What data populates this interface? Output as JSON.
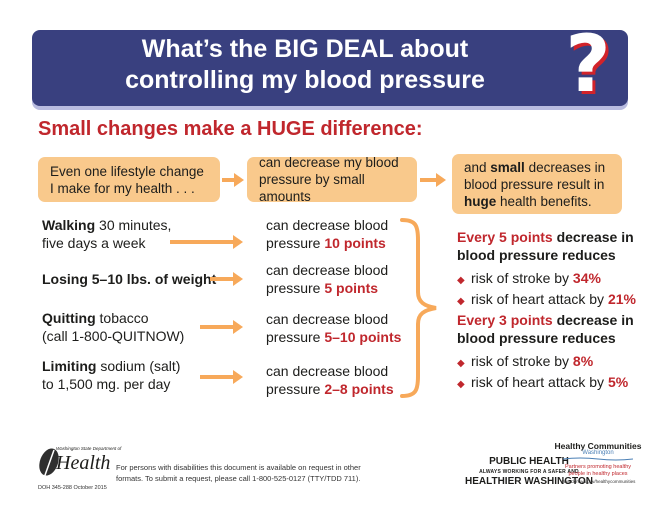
{
  "header": {
    "title_part1": "What’s the ",
    "title_bold": "BIG DEAL",
    "title_part2": " about",
    "title_line2": "controlling my blood pressure",
    "question_mark": "?"
  },
  "subtitle": "Small changes make a HUGE difference:",
  "top_boxes": {
    "box1": "Even one lifestyle change I make for my health . . .",
    "box2": "can decrease my blood pressure by small amounts",
    "box3_pre": "and ",
    "box3_small": "small",
    "box3_mid": " decreases in blood pressure result in ",
    "box3_huge": "huge",
    "box3_post": " health benefits."
  },
  "rows": [
    {
      "bold": "Walking",
      "text": " 30 minutes,",
      "line2": "five days a week",
      "effect": "can decrease blood",
      "effect2": "pressure ",
      "points": "10 points"
    },
    {
      "bold": "Losing 5–10 lbs. of weight",
      "text": "",
      "line2": "",
      "effect": "can decrease blood",
      "effect2": "pressure ",
      "points": "5 points"
    },
    {
      "bold": "Quitting",
      "text": " tobacco",
      "line2": "(call 1-800-QUITNOW)",
      "effect": "can decrease blood",
      "effect2": "pressure ",
      "points": "5–10 points"
    },
    {
      "bold": "Limiting",
      "text": " sodium (salt)",
      "line2": "to 1,500 mg. per day",
      "effect": "can decrease blood",
      "effect2": "pressure ",
      "points": "2–8 points"
    }
  ],
  "benefits": [
    {
      "head_red": "Every 5 points",
      "head_rest": " decrease in",
      "head_line2": "blood pressure reduces",
      "items": [
        {
          "text": "risk of stroke by ",
          "value": "34%"
        },
        {
          "text": "risk of heart attack by ",
          "value": "21%"
        }
      ]
    },
    {
      "head_red": "Every 3 points",
      "head_rest": " decrease in",
      "head_line2": "blood pressure reduces",
      "items": [
        {
          "text": "risk of stroke by ",
          "value": "8%"
        },
        {
          "text": "risk of heart attack by ",
          "value": "5%"
        }
      ]
    }
  ],
  "footer": {
    "wa_dept": "Washington State Department of",
    "health": "Health",
    "doh": "DOH 345-288 October 2015",
    "notice_line1": "For persons with disabilities this document is available on request in other",
    "notice_line2": "formats. To submit a request, please call 1-800-525-0127 (TTY/TDD 711).",
    "ph_line1": "PUBLIC HEALTH",
    "ph_small": "ALWAYS WORKING FOR A SAFER AND",
    "ph_line2": "HEALTHIER WASHINGTON",
    "hc_title": "Healthy Communities",
    "hc_state": "Washington",
    "hc_tag1": "Partners promoting healthy",
    "hc_tag2": "people in healthy places",
    "hc_url": "www.doh.wa.gov/healthycommunities"
  },
  "colors": {
    "banner": "#39407f",
    "accent_red": "#c0272d",
    "box_orange": "#f9c98c",
    "arrow": "#f7a95a"
  }
}
